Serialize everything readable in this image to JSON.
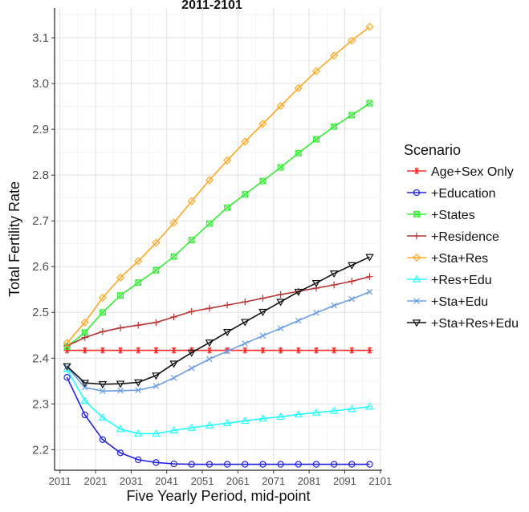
{
  "chart_data": {
    "type": "line",
    "title": "2011-2101",
    "xlabel": "Five Yearly Period, mid-point",
    "ylabel": "Total Fertility Rate",
    "x": [
      2013,
      2018,
      2023,
      2028,
      2033,
      2038,
      2043,
      2048,
      2053,
      2058,
      2063,
      2068,
      2073,
      2078,
      2083,
      2088,
      2093,
      2098
    ],
    "xlim": [
      2009.5,
      2101.5
    ],
    "ylim": [
      2.155,
      3.165
    ],
    "x_ticks": [
      "2011",
      "2021",
      "2031",
      "2041",
      "2051",
      "2061",
      "2071",
      "2081",
      "2091",
      "2101"
    ],
    "x_tick_values": [
      2011,
      2021,
      2031,
      2041,
      2051,
      2061,
      2071,
      2081,
      2091,
      2101
    ],
    "y_ticks": [
      "2.2",
      "2.3",
      "2.4",
      "2.5",
      "2.6",
      "2.7",
      "2.8",
      "2.9",
      "3.0",
      "3.1"
    ],
    "y_tick_values": [
      2.2,
      2.3,
      2.4,
      2.5,
      2.6,
      2.7,
      2.8,
      2.9,
      3.0,
      3.1
    ],
    "grid": true,
    "legend": {
      "title": "Scenario",
      "placement": "right"
    },
    "series": [
      {
        "name": "Age+Sex Only",
        "color": "#ff2a2a",
        "marker": "asterisk",
        "values": [
          2.417,
          2.417,
          2.417,
          2.417,
          2.417,
          2.417,
          2.417,
          2.417,
          2.417,
          2.417,
          2.417,
          2.417,
          2.417,
          2.417,
          2.417,
          2.417,
          2.417,
          2.417
        ]
      },
      {
        "name": "+Education",
        "color": "#2222dd",
        "marker": "circle",
        "values": [
          2.358,
          2.276,
          2.222,
          2.193,
          2.178,
          2.172,
          2.169,
          2.168,
          2.168,
          2.168,
          2.168,
          2.168,
          2.168,
          2.168,
          2.168,
          2.168,
          2.168,
          2.168
        ]
      },
      {
        "name": "+States",
        "color": "#33ee33",
        "marker": "boxx",
        "values": [
          2.425,
          2.456,
          2.5,
          2.537,
          2.565,
          2.592,
          2.622,
          2.658,
          2.694,
          2.729,
          2.758,
          2.787,
          2.817,
          2.848,
          2.878,
          2.906,
          2.931,
          2.957
        ]
      },
      {
        "name": "+Residence",
        "color": "#b83232",
        "marker": "plus",
        "values": [
          2.427,
          2.445,
          2.458,
          2.466,
          2.472,
          2.478,
          2.49,
          2.502,
          2.509,
          2.516,
          2.523,
          2.531,
          2.539,
          2.546,
          2.553,
          2.56,
          2.568,
          2.578
        ]
      },
      {
        "name": "+Sta+Res",
        "color": "#ffa520",
        "marker": "diamond",
        "values": [
          2.433,
          2.478,
          2.532,
          2.576,
          2.612,
          2.652,
          2.696,
          2.743,
          2.789,
          2.832,
          2.873,
          2.912,
          2.951,
          2.99,
          3.027,
          3.061,
          3.094,
          3.124
        ]
      },
      {
        "name": "+Res+Edu",
        "color": "#22ffff",
        "marker": "triangle",
        "values": [
          2.376,
          2.307,
          2.27,
          2.245,
          2.235,
          2.235,
          2.242,
          2.248,
          2.253,
          2.258,
          2.263,
          2.268,
          2.272,
          2.277,
          2.281,
          2.285,
          2.289,
          2.294
        ]
      },
      {
        "name": "+Sta+Edu",
        "color": "#6a9ce8",
        "marker": "x",
        "values": [
          2.381,
          2.336,
          2.328,
          2.329,
          2.33,
          2.339,
          2.357,
          2.378,
          2.398,
          2.415,
          2.432,
          2.449,
          2.465,
          2.482,
          2.499,
          2.515,
          2.529,
          2.545
        ]
      },
      {
        "name": "+Sta+Res+Edu",
        "color": "#111111",
        "marker": "triangle-down",
        "values": [
          2.382,
          2.346,
          2.343,
          2.344,
          2.347,
          2.362,
          2.388,
          2.412,
          2.434,
          2.457,
          2.479,
          2.501,
          2.523,
          2.545,
          2.564,
          2.585,
          2.603,
          2.621
        ]
      }
    ]
  }
}
